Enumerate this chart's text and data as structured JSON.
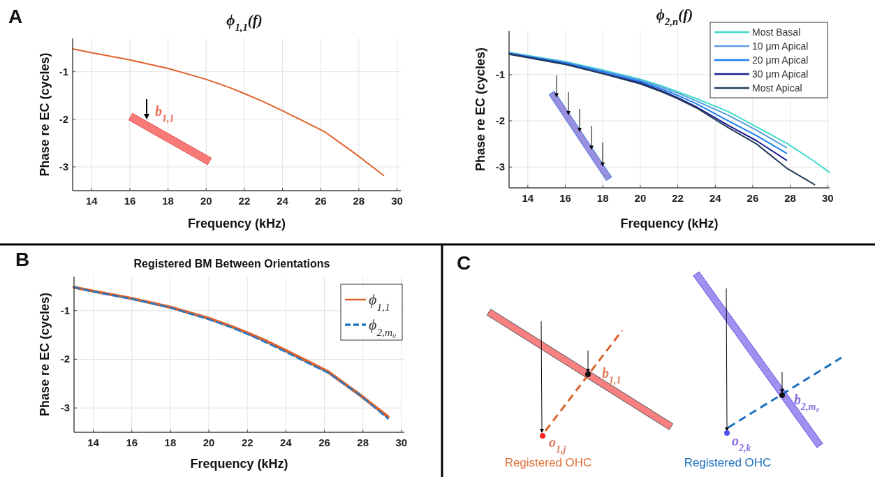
{
  "chart_data": [
    {
      "type": "line",
      "title": "ϕ$_{1,1}$(f)",
      "xlabel": "Frequency (kHz)",
      "ylabel": "Phase re EC (cycles)",
      "xlim": [
        13,
        30.2
      ],
      "ylim": [
        -3.5,
        -0.3
      ],
      "xticks": [
        14,
        16,
        18,
        20,
        22,
        24,
        26,
        28,
        30
      ],
      "yticks": [
        -3,
        -2,
        -1
      ],
      "grid": true,
      "marker": "none",
      "annotations": [
        "A",
        "b$_{1,1}$"
      ],
      "series": [
        {
          "color": "#e0622a",
          "x": [
            13,
            14,
            16,
            18,
            20,
            21.2,
            22,
            23,
            24,
            25,
            26.2,
            27.8,
            29.3
          ],
          "values": [
            -0.52,
            -0.6,
            -0.75,
            -0.93,
            -1.16,
            -1.33,
            -1.46,
            -1.63,
            -1.82,
            -2.02,
            -2.26,
            -2.72,
            -3.18
          ]
        }
      ]
    },
    {
      "type": "line",
      "title": "ϕ$_{2,n}$(f)",
      "xlabel": "Frequency (kHz)",
      "ylabel": "Phase re EC (cycles)",
      "xlim": [
        13,
        30.1
      ],
      "ylim": [
        -3.45,
        -0.05
      ],
      "xticks": [
        14,
        16,
        18,
        20,
        22,
        24,
        26,
        28,
        30
      ],
      "yticks": [
        -3,
        -2,
        -1
      ],
      "grid": true,
      "marker": "none",
      "legend": "top right",
      "series": [
        {
          "name": "Most Basal",
          "color": "#40dcc8",
          "x": [
            13,
            16,
            18,
            20,
            21.2,
            22,
            23,
            24.7,
            26.2,
            27.8,
            29.3,
            30.1
          ],
          "values": [
            -0.52,
            -0.72,
            -0.9,
            -1.1,
            -1.25,
            -1.37,
            -1.52,
            -1.8,
            -2.13,
            -2.48,
            -2.88,
            -3.12
          ]
        },
        {
          "name": "10 μm Apical",
          "color": "#5a9ee0",
          "x": [
            13,
            16,
            18,
            20,
            21.2,
            22,
            23,
            24.7,
            26.2,
            27.8
          ],
          "values": [
            -0.53,
            -0.73,
            -0.92,
            -1.12,
            -1.28,
            -1.4,
            -1.57,
            -1.88,
            -2.2,
            -2.58
          ]
        },
        {
          "name": "20 μm Apical",
          "color": "#1a7ef0",
          "x": [
            13,
            16,
            18,
            20,
            21.2,
            22,
            23,
            24.7,
            26.2,
            27.8
          ],
          "values": [
            -0.54,
            -0.75,
            -0.94,
            -1.15,
            -1.32,
            -1.45,
            -1.63,
            -2.0,
            -2.32,
            -2.7
          ]
        },
        {
          "name": "30 μm Apical",
          "color": "#1c1c90",
          "x": [
            13,
            16,
            18,
            20,
            21.2,
            22,
            23,
            24.7,
            26.2,
            27.8
          ],
          "values": [
            -0.55,
            -0.77,
            -0.97,
            -1.18,
            -1.36,
            -1.5,
            -1.7,
            -2.1,
            -2.43,
            -2.85
          ]
        },
        {
          "name": "Most Apical",
          "color": "#233c58",
          "x": [
            13,
            16,
            18,
            20,
            21.2,
            22,
            23,
            24.7,
            26.2,
            27.8,
            29.3
          ],
          "values": [
            -0.56,
            -0.78,
            -0.98,
            -1.2,
            -1.38,
            -1.52,
            -1.72,
            -2.15,
            -2.5,
            -3.02,
            -3.38
          ]
        }
      ]
    },
    {
      "type": "line",
      "title": "Registered BM Between Orientations",
      "xlabel": "Frequency (kHz)",
      "ylabel": "Phase re EC (cycles)",
      "xlim": [
        13,
        30.15
      ],
      "ylim": [
        -3.5,
        -0.3
      ],
      "xticks": [
        14,
        16,
        18,
        20,
        22,
        24,
        26,
        28,
        30
      ],
      "yticks": [
        -3,
        -2,
        -1
      ],
      "grid": true,
      "marker": "none",
      "legend": "top right",
      "annotations": [
        "B"
      ],
      "series": [
        {
          "name": "ϕ$_{1,1}$",
          "color": "#e0622a",
          "line_style": "solid",
          "x": [
            13,
            14,
            16,
            18,
            20,
            21.2,
            22,
            23,
            24,
            25,
            26.2,
            27.8,
            29.3
          ],
          "values": [
            -0.52,
            -0.6,
            -0.75,
            -0.93,
            -1.16,
            -1.33,
            -1.46,
            -1.63,
            -1.82,
            -2.02,
            -2.26,
            -2.72,
            -3.18
          ]
        },
        {
          "name": "ϕ$_{2,m₀}$",
          "color": "#1f78c8",
          "line_style": "dashed",
          "x": [
            13,
            14,
            16,
            18,
            20,
            21.2,
            22,
            23,
            24,
            25,
            26.2,
            27.8,
            29.3
          ],
          "values": [
            -0.52,
            -0.61,
            -0.76,
            -0.94,
            -1.18,
            -1.35,
            -1.48,
            -1.66,
            -1.85,
            -2.05,
            -2.28,
            -2.72,
            -3.22
          ]
        }
      ]
    },
    {
      "type": "other",
      "annotations": [
        "C",
        "b$_{1,1}$",
        "o$_{1,j}$",
        "Registered OHC",
        "b$_{2,m₀}$",
        "o$_{2,k}$",
        "Registered OHC"
      ]
    }
  ]
}
